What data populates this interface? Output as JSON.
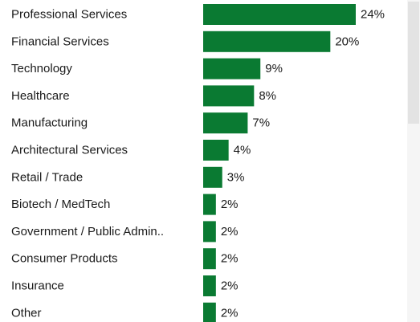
{
  "chart_data": {
    "type": "bar",
    "orientation": "horizontal",
    "categories": [
      "Professional Services",
      "Financial Services",
      "Technology",
      "Healthcare",
      "Manufacturing",
      "Architectural Services",
      "Retail / Trade",
      "Biotech / MedTech",
      "Government / Public Admin..",
      "Consumer Products",
      "Insurance",
      "Other"
    ],
    "values": [
      24,
      20,
      9,
      8,
      7,
      4,
      3,
      2,
      2,
      2,
      2,
      2
    ],
    "value_labels": [
      "24%",
      "20%",
      "9%",
      "8%",
      "7%",
      "4%",
      "3%",
      "2%",
      "2%",
      "2%",
      "2%",
      "2%"
    ],
    "xlim": [
      0,
      24
    ],
    "grid": false,
    "bar_color": "#0a7a32",
    "title": "",
    "xlabel": "",
    "ylabel": ""
  }
}
